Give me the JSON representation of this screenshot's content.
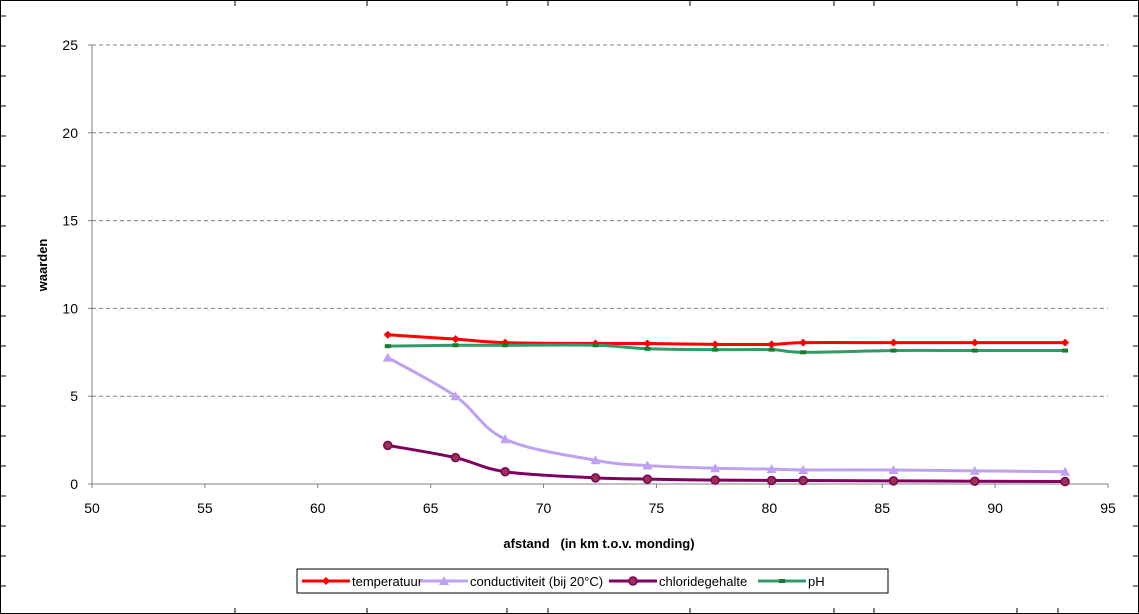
{
  "chart_data": {
    "type": "line",
    "title": "",
    "xlabel": "afstand   (in km t.o.v. monding)",
    "ylabel": "waarden",
    "xlim": [
      50,
      95
    ],
    "ylim": [
      0,
      25
    ],
    "xticks": [
      "50",
      "55",
      "60",
      "65",
      "70",
      "75",
      "80",
      "85",
      "90",
      "95"
    ],
    "yticks": [
      "0",
      "5",
      "10",
      "15",
      "20",
      "25"
    ],
    "grid": "horizontal dashed",
    "legend_position": "bottom",
    "x": [
      63.1,
      66.1,
      68.3,
      72.3,
      74.6,
      77.6,
      80.1,
      81.5,
      85.5,
      89.1,
      93.1
    ],
    "series": [
      {
        "name": "temperatuur",
        "color": "#ff0000",
        "marker": "diamond",
        "values": [
          8.5,
          8.25,
          8.05,
          8.0,
          8.0,
          7.95,
          7.95,
          8.05,
          8.05,
          8.05,
          8.05
        ]
      },
      {
        "name": "conductiviteit (bij 20°C)",
        "color": "#c0a0f0",
        "marker": "triangle",
        "values": [
          7.2,
          5.0,
          2.55,
          1.35,
          1.05,
          0.9,
          0.85,
          0.8,
          0.8,
          0.75,
          0.7
        ]
      },
      {
        "name": "chloridegehalte",
        "color": "#800060",
        "marker": "circle",
        "values": [
          2.2,
          1.5,
          0.7,
          0.35,
          0.28,
          0.22,
          0.2,
          0.2,
          0.18,
          0.16,
          0.14
        ]
      },
      {
        "name": "pH",
        "color": "#339966",
        "marker": "square",
        "values": [
          7.85,
          7.9,
          7.9,
          7.9,
          7.7,
          7.65,
          7.65,
          7.5,
          7.6,
          7.6,
          7.6
        ]
      }
    ]
  }
}
